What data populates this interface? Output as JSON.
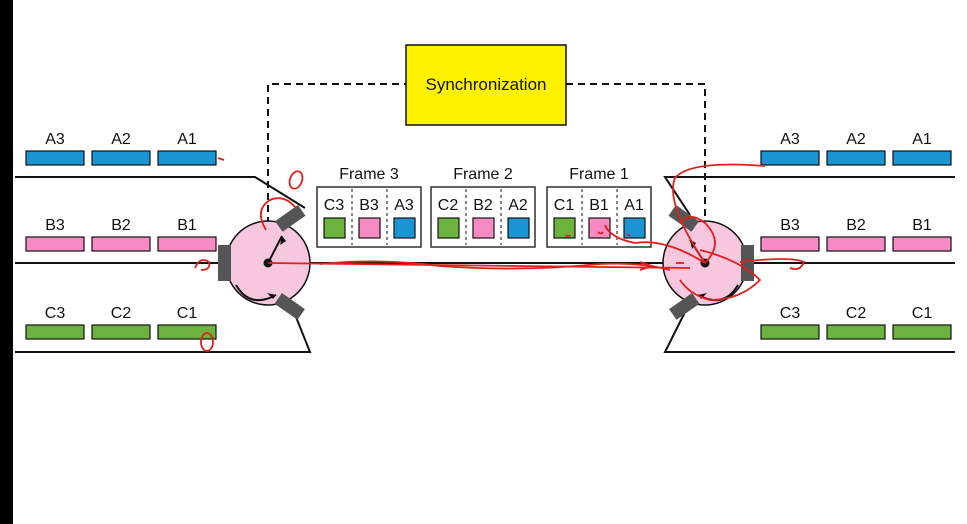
{
  "title": "Synchronization",
  "colors": {
    "A": "#1a95d3",
    "B": "#f58bc2",
    "C": "#6db33f",
    "sync_fill": "#fff200",
    "disk_fill": "#f7c6df",
    "annotation": "#e0201b",
    "left_bar": "#000000"
  },
  "left_inputs": {
    "A": [
      "A3",
      "A2",
      "A1"
    ],
    "B": [
      "B3",
      "B2",
      "B1"
    ],
    "C": [
      "C3",
      "C2",
      "C1"
    ]
  },
  "right_outputs": {
    "A": [
      "A3",
      "A2",
      "A1"
    ],
    "B": [
      "B3",
      "B2",
      "B1"
    ],
    "C": [
      "C3",
      "C2",
      "C1"
    ]
  },
  "frames": [
    {
      "label": "Frame 3",
      "slots": [
        "C3",
        "B3",
        "A3"
      ]
    },
    {
      "label": "Frame 2",
      "slots": [
        "C2",
        "B2",
        "A2"
      ]
    },
    {
      "label": "Frame 1",
      "slots": [
        "C1",
        "B1",
        "A1"
      ]
    }
  ]
}
